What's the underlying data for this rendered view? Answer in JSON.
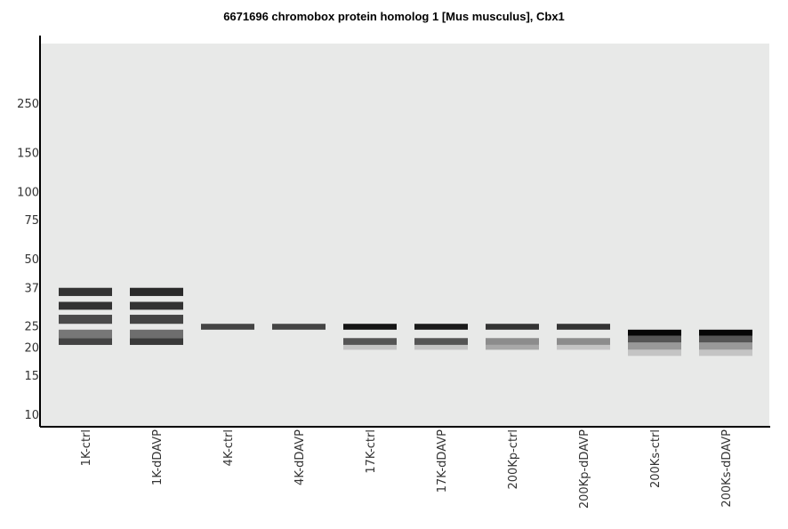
{
  "chart_data": {
    "type": "gel",
    "title": "6671696 chromobox protein homolog 1 [Mus musculus], Cbx1",
    "y_scale": "log",
    "y_ticks": [
      250,
      150,
      100,
      75,
      50,
      37,
      25,
      20,
      15,
      10
    ],
    "lanes": [
      {
        "label": "1K-ctrl",
        "bands": [
          {
            "top": 37,
            "bottom": 34,
            "shade": "#333333"
          },
          {
            "top": 32,
            "bottom": 29.5,
            "shade": "#333333"
          },
          {
            "top": 28,
            "bottom": 25.5,
            "shade": "#4a4a4a"
          },
          {
            "top": 24,
            "bottom": 22,
            "shade": "#777777"
          },
          {
            "top": 22,
            "bottom": 20.5,
            "shade": "#444444"
          }
        ]
      },
      {
        "label": "1K-dDAVP",
        "bands": [
          {
            "top": 37,
            "bottom": 34,
            "shade": "#2a2a2a"
          },
          {
            "top": 32,
            "bottom": 29.5,
            "shade": "#333333"
          },
          {
            "top": 28,
            "bottom": 25.5,
            "shade": "#444444"
          },
          {
            "top": 24,
            "bottom": 22,
            "shade": "#6e6e6e"
          },
          {
            "top": 22,
            "bottom": 20.5,
            "shade": "#3a3a3a"
          }
        ]
      },
      {
        "label": "4K-ctrl",
        "bands": [
          {
            "top": 25.5,
            "bottom": 24,
            "shade": "#444444"
          }
        ]
      },
      {
        "label": "4K-dDAVP",
        "bands": [
          {
            "top": 25.5,
            "bottom": 24,
            "shade": "#444444"
          }
        ]
      },
      {
        "label": "17K-ctrl",
        "bands": [
          {
            "top": 25.5,
            "bottom": 24,
            "shade": "#151515"
          },
          {
            "top": 22,
            "bottom": 20.5,
            "shade": "#555555"
          },
          {
            "top": 20.5,
            "bottom": 19.5,
            "shade": "#c4c4c4"
          }
        ]
      },
      {
        "label": "17K-dDAVP",
        "bands": [
          {
            "top": 25.5,
            "bottom": 24,
            "shade": "#1a1a1a"
          },
          {
            "top": 22,
            "bottom": 20.5,
            "shade": "#555555"
          },
          {
            "top": 20.5,
            "bottom": 19.5,
            "shade": "#c4c4c4"
          }
        ]
      },
      {
        "label": "200Kp-ctrl",
        "bands": [
          {
            "top": 25.5,
            "bottom": 24,
            "shade": "#333333"
          },
          {
            "top": 22,
            "bottom": 20.5,
            "shade": "#8c8c8c"
          },
          {
            "top": 20.5,
            "bottom": 19.5,
            "shade": "#a8a8a8"
          }
        ]
      },
      {
        "label": "200Kp-dDAVP",
        "bands": [
          {
            "top": 25.5,
            "bottom": 24,
            "shade": "#333333"
          },
          {
            "top": 22,
            "bottom": 20.5,
            "shade": "#8c8c8c"
          },
          {
            "top": 20.5,
            "bottom": 19.5,
            "shade": "#c4c4c4"
          }
        ]
      },
      {
        "label": "200Ks-ctrl",
        "bands": [
          {
            "top": 24,
            "bottom": 22.5,
            "shade": "#050505"
          },
          {
            "top": 22.5,
            "bottom": 21,
            "shade": "#555555"
          },
          {
            "top": 21,
            "bottom": 19.5,
            "shade": "#999999"
          },
          {
            "top": 19.5,
            "bottom": 18.3,
            "shade": "#c4c4c4"
          }
        ]
      },
      {
        "label": "200Ks-dDAVP",
        "bands": [
          {
            "top": 24,
            "bottom": 22.5,
            "shade": "#050505"
          },
          {
            "top": 22.5,
            "bottom": 21,
            "shade": "#555555"
          },
          {
            "top": 21,
            "bottom": 19.5,
            "shade": "#999999"
          },
          {
            "top": 19.5,
            "bottom": 18.3,
            "shade": "#c4c4c4"
          }
        ]
      }
    ]
  },
  "colors": {
    "plot_background": "#e8e9e8",
    "axis": "#000000"
  }
}
